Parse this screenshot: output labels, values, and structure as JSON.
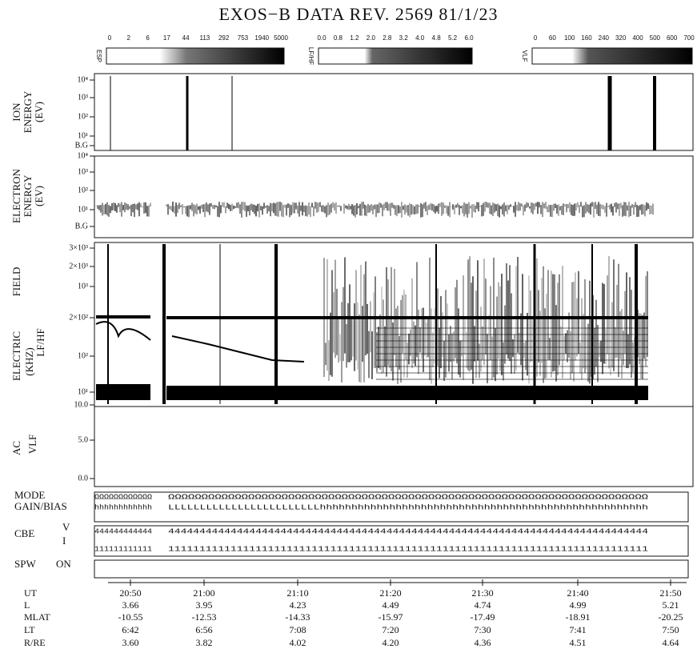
{
  "title": "EXOS−B  DATA  REV. 2569  81/1/23",
  "color_bars": [
    {
      "label": "ESP",
      "ticks": [
        "0",
        "2",
        "6",
        "17",
        "44",
        "113",
        "292",
        "753",
        "1940",
        "5000"
      ]
    },
    {
      "label": "LF/HF",
      "ticks": [
        "0.0",
        "0.8",
        "1.2",
        "2.0",
        "2.8",
        "3.2",
        "4.0",
        "4.8",
        "5.2",
        "6.0"
      ]
    },
    {
      "label": "VLF",
      "ticks": [
        "0",
        "60",
        "100",
        "160",
        "240",
        "320",
        "400",
        "500",
        "600",
        "700"
      ]
    }
  ],
  "panels": [
    {
      "labels": [
        "ION",
        "ENERGY",
        "(EV)"
      ],
      "ticks": [
        "10⁴",
        "10³",
        "10²",
        "10¹",
        "B.G"
      ]
    },
    {
      "labels": [
        "ELECTRON",
        "ENERGY",
        "(EV)"
      ],
      "ticks": [
        "10⁴",
        "10³",
        "10²",
        "10¹",
        "B.G"
      ]
    },
    {
      "labels": [
        "FIELD",
        "ELECTRIC",
        "LF/HF",
        "(KHZ)"
      ],
      "ticks": [
        "3×10³",
        "2×10³",
        "10³",
        "2×10²",
        "10²",
        "10¹"
      ]
    },
    {
      "labels": [
        "AC",
        "VLF"
      ],
      "ticks": [
        "10.0",
        "5.0",
        "0.0"
      ]
    }
  ],
  "status": {
    "labels": [
      "MODE",
      "GAIN/BIAS",
      "CBE",
      "V",
      "I",
      "SPW",
      "ON"
    ],
    "rows": [
      [
        "ΩΩΩΩΩΩΩΩΩΩΩΩ",
        "ΩΩΩΩΩΩΩΩΩΩΩΩΩΩΩΩΩΩΩΩΩΩΩΩΩΩΩΩΩΩΩΩΩΩΩΩΩΩΩΩΩΩΩΩΩΩΩΩΩΩΩΩΩΩΩΩΩΩΩΩΩΩΩΩΩΩΩΩΩΩΩΩ"
      ],
      [
        "hhhhhhhhhhhh",
        "LLLLLLLLLLLLLLLLLLLLLLLLhhhhhhhhhhhhhhhhhhhhhhhhhhhhhhhhhhhhhhhhhhhhhhhhhhhh"
      ],
      [
        "444444444444",
        "44444444444444444444444444444444444444444444444444444444444444444444444444444"
      ],
      [
        "111111111111",
        "11111111111111111111111111111111111111111111111111111111111111111111111111111"
      ]
    ]
  },
  "ephemeris": {
    "labels": [
      "UT",
      "L",
      "MLAT",
      "LT",
      "R/RE"
    ],
    "columns": [
      [
        "20:50",
        "3.66",
        "-10.55",
        "6:42",
        "3.60"
      ],
      [
        "21:00",
        "3.95",
        "-12.53",
        "6:56",
        "3.82"
      ],
      [
        "21:10",
        "4.23",
        "-14.33",
        "7:08",
        "4.02"
      ],
      [
        "21:20",
        "4.49",
        "-15.97",
        "7:20",
        "4.20"
      ],
      [
        "21:30",
        "4.74",
        "-17.49",
        "7:30",
        "4.36"
      ],
      [
        "21:40",
        "4.99",
        "-18.91",
        "7:41",
        "4.51"
      ],
      [
        "21:50",
        "5.21",
        "-20.25",
        "7:50",
        "4.64"
      ]
    ]
  }
}
